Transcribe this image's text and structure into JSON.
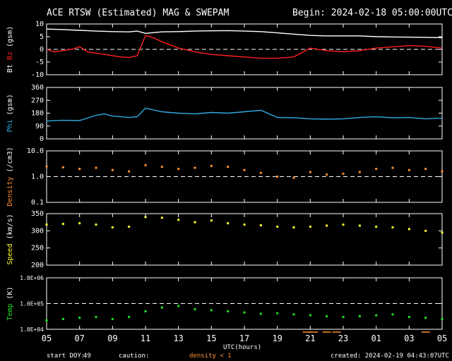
{
  "header": {
    "title": "ACE RTSW (Estimated) MAG & SWEPAM",
    "begin": "Begin: 2024-02-18 05:00:00UTC"
  },
  "footer": {
    "start_doy_label": "start DOY:",
    "start_doy_value": "49",
    "caution_label": "caution:",
    "caution_text": "density < 1",
    "created": "created: 2024-02-19 04:43:07UTC"
  },
  "colors": {
    "background": "#000000",
    "axes": "#ffffff",
    "bt": "#ffffff",
    "bz": "#ff2020",
    "phi": "#30a8e0",
    "density": "#ff9030",
    "speed": "#ffff30",
    "temp": "#20e020",
    "density_caution": "#ff9030"
  },
  "chart_data": [
    {
      "type": "line",
      "ylabel": [
        "Bt",
        "Bz",
        "(gsm)"
      ],
      "ylim": [
        -10,
        10
      ],
      "yticks": [
        "10",
        "5",
        "0",
        "-5",
        "-10"
      ],
      "reference_line": 0,
      "series": [
        {
          "name": "Bt",
          "color": "#ffffff",
          "x": [
            0,
            1,
            2,
            3,
            4,
            5,
            5.5,
            6,
            7,
            8,
            9,
            10,
            11,
            12,
            13,
            14,
            15,
            16,
            17,
            18,
            19,
            20,
            21,
            22,
            23,
            24
          ],
          "y": [
            8.0,
            7.8,
            7.5,
            7.2,
            7.0,
            6.9,
            7.2,
            6.3,
            6.9,
            7.0,
            7.2,
            7.3,
            7.4,
            7.2,
            7.0,
            6.5,
            6.0,
            5.5,
            5.3,
            5.3,
            5.3,
            5.0,
            4.9,
            4.8,
            4.7,
            4.6
          ]
        },
        {
          "name": "Bz",
          "color": "#ff2020",
          "x": [
            0,
            0.5,
            1,
            1.5,
            2,
            2.5,
            3,
            3.5,
            4,
            4.5,
            5,
            5.5,
            6,
            6.5,
            7,
            8,
            9,
            10,
            11,
            12,
            13,
            14,
            15,
            16,
            17,
            18,
            19,
            20,
            21,
            22,
            23,
            24
          ],
          "y": [
            0,
            -1,
            -0.5,
            0,
            1,
            -1,
            -1.5,
            -2,
            -2.5,
            -3,
            -3.2,
            -2.5,
            5.5,
            4.5,
            3.0,
            0.5,
            -1,
            -2,
            -2.5,
            -3,
            -3.5,
            -3.5,
            -3,
            0.5,
            -0.5,
            -1,
            -0.5,
            0.5,
            1,
            1.5,
            1.2,
            0.5
          ]
        }
      ]
    },
    {
      "type": "line",
      "ylabel": [
        "Phi",
        "(gsm)"
      ],
      "ylim": [
        0,
        360
      ],
      "yticks": [
        "360",
        "270",
        "180",
        "90",
        "0"
      ],
      "series": [
        {
          "name": "Phi",
          "color": "#30a8e0",
          "x": [
            0,
            1,
            2,
            3,
            3.5,
            4,
            5,
            5.5,
            6,
            7,
            8,
            9,
            10,
            11,
            12,
            13,
            14,
            15,
            16,
            17,
            18,
            19,
            20,
            21,
            22,
            23,
            24
          ],
          "y": [
            125,
            130,
            128,
            165,
            175,
            160,
            150,
            155,
            215,
            190,
            180,
            175,
            185,
            180,
            190,
            200,
            150,
            148,
            140,
            138,
            140,
            150,
            155,
            148,
            150,
            140,
            145
          ]
        }
      ]
    },
    {
      "type": "scatter",
      "ylabel": [
        "Density",
        "(/cm3)"
      ],
      "ylim": [
        0.1,
        10
      ],
      "log": true,
      "yticks": [
        "10.0",
        "1.0",
        "0.1"
      ],
      "reference_line": 1.0,
      "series": [
        {
          "name": "Density",
          "color": "#ff9030",
          "x": [
            0,
            1,
            2,
            3,
            4,
            5,
            6,
            7,
            8,
            9,
            10,
            11,
            12,
            13,
            14,
            15,
            16,
            17,
            18,
            19,
            20,
            21,
            22,
            23,
            24
          ],
          "y": [
            2.5,
            2.3,
            2.0,
            2.2,
            1.8,
            1.6,
            2.8,
            2.4,
            2.0,
            2.2,
            2.6,
            2.4,
            1.8,
            1.4,
            1.0,
            0.9,
            1.5,
            1.2,
            1.3,
            1.5,
            2.0,
            2.2,
            1.8,
            2.0,
            1.6
          ]
        }
      ]
    },
    {
      "type": "scatter",
      "ylabel": [
        "Speed",
        "(km/s)"
      ],
      "ylim": [
        200,
        350
      ],
      "yticks": [
        "350",
        "300",
        "250",
        "200"
      ],
      "series": [
        {
          "name": "Speed",
          "color": "#ffff30",
          "x": [
            0,
            1,
            2,
            3,
            4,
            5,
            6,
            7,
            8,
            9,
            10,
            11,
            12,
            13,
            14,
            15,
            16,
            17,
            18,
            19,
            20,
            21,
            22,
            23,
            24
          ],
          "y": [
            318,
            320,
            322,
            318,
            310,
            312,
            340,
            338,
            332,
            325,
            330,
            322,
            318,
            316,
            312,
            310,
            312,
            315,
            318,
            315,
            312,
            310,
            305,
            300,
            295
          ]
        }
      ]
    },
    {
      "type": "scatter",
      "ylabel": [
        "Temp",
        "(K)"
      ],
      "ylim": [
        10000,
        1000000
      ],
      "log": true,
      "yticks": [
        "1.0E+06",
        "1.0E+05",
        "1.0E+04"
      ],
      "reference_line": 100000,
      "series": [
        {
          "name": "Temp",
          "color": "#20e020",
          "x": [
            0,
            1,
            2,
            3,
            4,
            5,
            6,
            7,
            8,
            9,
            10,
            11,
            12,
            13,
            14,
            15,
            16,
            17,
            18,
            19,
            20,
            21,
            22,
            23,
            24
          ],
          "y": [
            22000,
            25000,
            28000,
            30000,
            25000,
            30000,
            50000,
            70000,
            80000,
            60000,
            55000,
            50000,
            45000,
            40000,
            42000,
            38000,
            35000,
            32000,
            30000,
            32000,
            35000,
            38000,
            30000,
            28000,
            25000
          ]
        }
      ]
    }
  ],
  "x_axis": {
    "xlabel": "UTC(hours)",
    "ticks": [
      "05",
      "07",
      "09",
      "11",
      "13",
      "15",
      "17",
      "19",
      "21",
      "23",
      "01",
      "03",
      "05"
    ],
    "range_hours": [
      0,
      24
    ],
    "data_gap_hours": [
      16.6,
      17.3
    ]
  }
}
